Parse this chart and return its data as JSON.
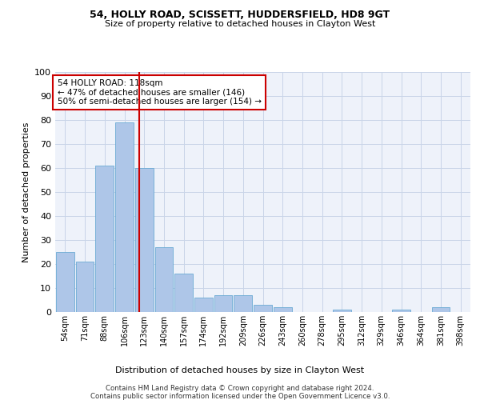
{
  "title1": "54, HOLLY ROAD, SCISSETT, HUDDERSFIELD, HD8 9GT",
  "title2": "Size of property relative to detached houses in Clayton West",
  "xlabel": "Distribution of detached houses by size in Clayton West",
  "ylabel": "Number of detached properties",
  "footnote1": "Contains HM Land Registry data © Crown copyright and database right 2024.",
  "footnote2": "Contains public sector information licensed under the Open Government Licence v3.0.",
  "annotation_line1": "54 HOLLY ROAD: 118sqm",
  "annotation_line2": "← 47% of detached houses are smaller (146)",
  "annotation_line3": "50% of semi-detached houses are larger (154) →",
  "bar_color": "#aec6e8",
  "bar_edge_color": "#6aaad4",
  "vline_color": "#cc0000",
  "annotation_box_edge": "#cc0000",
  "grid_color": "#c8d4e8",
  "background_color": "#eef2fa",
  "categories": [
    "54sqm",
    "71sqm",
    "88sqm",
    "106sqm",
    "123sqm",
    "140sqm",
    "157sqm",
    "174sqm",
    "192sqm",
    "209sqm",
    "226sqm",
    "243sqm",
    "260sqm",
    "278sqm",
    "295sqm",
    "312sqm",
    "329sqm",
    "346sqm",
    "364sqm",
    "381sqm",
    "398sqm"
  ],
  "values": [
    25,
    21,
    61,
    79,
    60,
    27,
    16,
    6,
    7,
    7,
    3,
    2,
    0,
    0,
    1,
    0,
    0,
    1,
    0,
    2,
    0
  ],
  "ylim": [
    0,
    100
  ],
  "yticks": [
    0,
    10,
    20,
    30,
    40,
    50,
    60,
    70,
    80,
    90,
    100
  ],
  "vline_x_index": 3.76,
  "figsize": [
    6.0,
    5.0
  ],
  "dpi": 100
}
